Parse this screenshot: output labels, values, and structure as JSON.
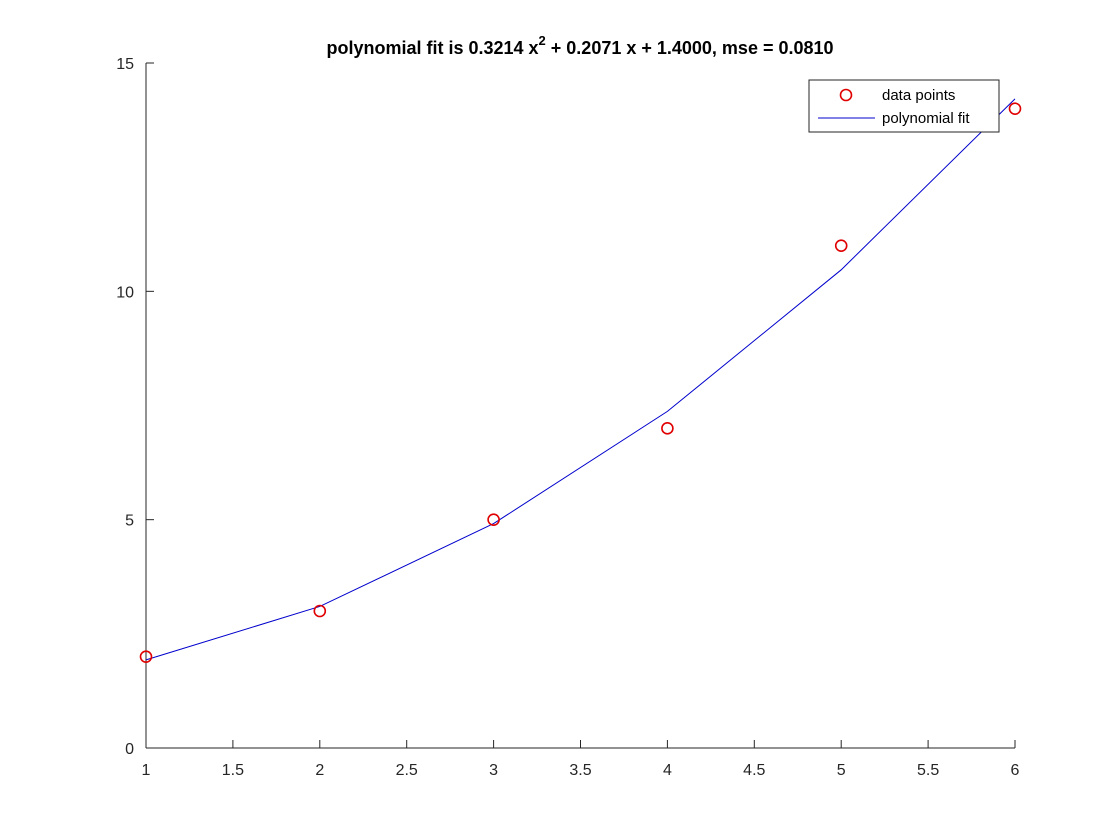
{
  "chart_data": {
    "type": "line",
    "title": {
      "prefix": "polynomial fit is 0.3214 x",
      "superscript": "2",
      "suffix": " + 0.2071 x + 1.4000, mse = 0.0810"
    },
    "xlabel": "",
    "ylabel": "",
    "xlim": [
      1,
      6
    ],
    "ylim": [
      0,
      15
    ],
    "x_ticks": [
      1,
      1.5,
      2,
      2.5,
      3,
      3.5,
      4,
      4.5,
      5,
      5.5,
      6
    ],
    "y_ticks": [
      0,
      5,
      10,
      15
    ],
    "grid": false,
    "legend_position": "top-right",
    "series": [
      {
        "name": "data points",
        "style": "markers",
        "marker": "circle",
        "color": "#e00000",
        "x": [
          1,
          2,
          3,
          4,
          5,
          6
        ],
        "y": [
          2,
          3,
          5,
          7,
          11,
          14
        ]
      },
      {
        "name": "polynomial fit",
        "style": "line",
        "color": "#0000cc",
        "x": [
          1,
          2,
          3,
          4,
          5,
          6
        ],
        "y": [
          1.929,
          3.1,
          4.914,
          7.371,
          10.471,
          14.214
        ]
      }
    ]
  }
}
